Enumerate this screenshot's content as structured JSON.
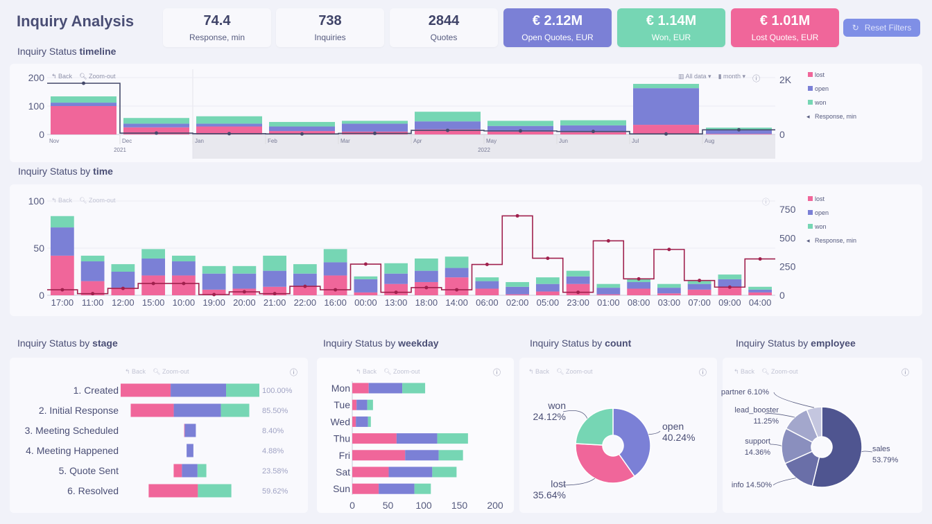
{
  "header": {
    "title": "Inquiry Analysis",
    "reset_label": "Reset Filters"
  },
  "kpis": [
    {
      "value": "74.4",
      "label": "Response, min"
    },
    {
      "value": "738",
      "label": "Inquiries"
    },
    {
      "value": "2844",
      "label": "Quotes"
    },
    {
      "value": "€ 2.12M",
      "label": "Open Quotes, EUR",
      "color": "#7b80d6"
    },
    {
      "value": "€ 1.14M",
      "label": "Won, EUR",
      "color": "#76d6b4"
    },
    {
      "value": "€ 1.01M",
      "label": "Lost Quotes, EUR",
      "color": "#f0669a"
    }
  ],
  "toolbar": {
    "back": "Back",
    "zoom_out": "Zoom-out",
    "all_data": "All data ▾",
    "period": "month ▾"
  },
  "colors": {
    "lost": "#f0669a",
    "open": "#7b80d6",
    "won": "#76d6b4",
    "timeline_line": "#454a6b",
    "time_line": "#a0204d"
  },
  "sections": {
    "timeline": {
      "prefix": "Inquiry Status ",
      "bold": "timeline"
    },
    "time": {
      "prefix": "Inquiry Status by ",
      "bold": "time"
    },
    "stage": {
      "prefix": "Inquiry Status by ",
      "bold": "stage"
    },
    "weekday": {
      "prefix": "Inquiry Status by ",
      "bold": "weekday"
    },
    "count": {
      "prefix": "Inquiry Status by ",
      "bold": "count"
    },
    "employee": {
      "prefix": "Inquiry Status by ",
      "bold": "employee"
    }
  },
  "chart_data": [
    {
      "id": "timeline",
      "type": "bar",
      "stacked": true,
      "categories": [
        "Nov",
        "Dec",
        "Jan",
        "Feb",
        "Mar",
        "Apr",
        "May",
        "Jun",
        "Jul",
        "Aug"
      ],
      "year_labels": [
        "2021",
        "2022"
      ],
      "series": [
        {
          "name": "lost",
          "values": [
            100,
            25,
            28,
            12,
            10,
            18,
            10,
            8,
            34,
            2
          ]
        },
        {
          "name": "open",
          "values": [
            12,
            13,
            10,
            16,
            28,
            28,
            20,
            24,
            129,
            14
          ]
        },
        {
          "name": "won",
          "values": [
            22,
            20,
            26,
            16,
            10,
            34,
            18,
            18,
            15,
            8
          ]
        }
      ],
      "line": {
        "name": "Response, min",
        "values": [
          1870,
          50,
          30,
          20,
          40,
          150,
          130,
          110,
          20,
          170
        ]
      },
      "ylim": [
        0,
        200
      ],
      "yticks": [
        "0",
        "100",
        "200"
      ],
      "y2lim": [
        0,
        2000
      ],
      "y2ticks": [
        "0",
        "2K"
      ],
      "legend": "right"
    },
    {
      "id": "time",
      "type": "bar",
      "stacked": true,
      "categories": [
        "17:00",
        "11:00",
        "12:00",
        "15:00",
        "10:00",
        "19:00",
        "20:00",
        "21:00",
        "22:00",
        "16:00",
        "00:00",
        "13:00",
        "18:00",
        "14:00",
        "06:00",
        "02:00",
        "05:00",
        "23:00",
        "01:00",
        "08:00",
        "03:00",
        "07:00",
        "09:00",
        "04:00"
      ],
      "series": [
        {
          "name": "lost",
          "values": [
            42,
            15,
            8,
            21,
            21,
            6,
            7,
            9,
            10,
            21,
            3,
            12,
            14,
            19,
            7,
            1,
            4,
            12,
            1,
            7,
            2,
            6,
            9,
            3
          ]
        },
        {
          "name": "open",
          "values": [
            30,
            21,
            17,
            18,
            15,
            17,
            16,
            17,
            13,
            14,
            14,
            11,
            12,
            10,
            8,
            8,
            8,
            8,
            7,
            7,
            6,
            6,
            8,
            3
          ]
        },
        {
          "name": "won",
          "values": [
            12,
            6,
            8,
            10,
            6,
            8,
            8,
            16,
            10,
            14,
            3,
            11,
            13,
            12,
            4,
            5,
            7,
            6,
            4,
            4,
            4,
            3,
            5,
            3
          ]
        }
      ],
      "line": {
        "name": "Response, min",
        "values": [
          48,
          14,
          60,
          103,
          103,
          6,
          30,
          14,
          78,
          48,
          272,
          26,
          67,
          48,
          269,
          693,
          323,
          26,
          475,
          143,
          400,
          129,
          71,
          317
        ]
      },
      "ylim": [
        0,
        100
      ],
      "yticks": [
        "0",
        "50",
        "100"
      ],
      "y2lim": [
        0,
        750
      ],
      "y2ticks": [
        "0",
        "250",
        "500",
        "750"
      ],
      "legend": "right"
    },
    {
      "id": "stage",
      "type": "bar",
      "orientation": "funnel",
      "categories": [
        "1. Created",
        "2. Initial Response",
        "3. Meeting Scheduled",
        "4. Meeting Happened",
        "5. Quote Sent",
        "6. Resolved"
      ],
      "percent_labels": [
        "100.00%",
        "85.50%",
        "8.40%",
        "4.88%",
        "23.58%",
        "59.62%"
      ],
      "series": [
        {
          "name": "lost",
          "values": [
            266,
            229,
            3,
            0,
            44,
            262
          ]
        },
        {
          "name": "open",
          "values": [
            295,
            251,
            59,
            36,
            83,
            0
          ]
        },
        {
          "name": "won",
          "values": [
            177,
            151,
            0,
            0,
            47,
            178
          ]
        }
      ]
    },
    {
      "id": "weekday",
      "type": "bar",
      "orientation": "horizontal",
      "stacked": true,
      "categories": [
        "Mon",
        "Tue",
        "Wed",
        "Thu",
        "Fri",
        "Sat",
        "Sun"
      ],
      "series": [
        {
          "name": "lost",
          "values": [
            23,
            6,
            5,
            62,
            74,
            51,
            37
          ]
        },
        {
          "name": "open",
          "values": [
            47,
            15,
            17,
            57,
            47,
            61,
            50
          ]
        },
        {
          "name": "won",
          "values": [
            32,
            8,
            4,
            43,
            34,
            34,
            23
          ]
        }
      ],
      "xlim": [
        0,
        200
      ],
      "xticks": [
        "0",
        "50",
        "100",
        "150",
        "200"
      ]
    },
    {
      "id": "count",
      "type": "pie",
      "donut": true,
      "labels": [
        "open",
        "lost",
        "won"
      ],
      "values": [
        40.24,
        35.64,
        24.12
      ],
      "value_labels": [
        "40.24%",
        "35.64%",
        "24.12%"
      ],
      "colors": [
        "#7b80d6",
        "#f0669a",
        "#76d6b4"
      ]
    },
    {
      "id": "employee",
      "type": "pie",
      "donut": true,
      "labels": [
        "sales",
        "info",
        "support",
        "lead_booster",
        "partner"
      ],
      "values": [
        53.79,
        14.5,
        14.36,
        11.25,
        6.1
      ],
      "value_labels": [
        "53.79%",
        "14.50%",
        "14.36%",
        "11.25%",
        "6.10%"
      ],
      "colors": [
        "#4f5590",
        "#6a6fa8",
        "#8a8fbe",
        "#a3a7cc",
        "#c4c6df"
      ]
    }
  ]
}
